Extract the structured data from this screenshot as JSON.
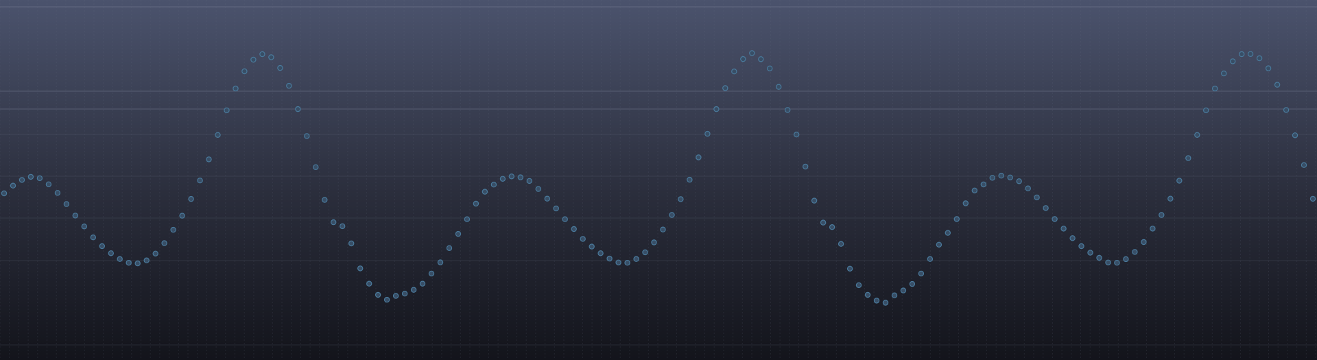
{
  "chart_data": {
    "type": "scatter",
    "title": "",
    "xlabel": "",
    "ylabel": "",
    "grid": true,
    "legend": "none",
    "xlim": [
      0,
      140
    ],
    "ylim": [
      -6,
      11
    ],
    "series": [
      {
        "values": [
          0.71,
          1.22,
          1.6,
          1.8,
          1.71,
          1.31,
          0.74,
          0.0,
          -0.76,
          -1.48,
          -2.2,
          -2.78,
          -3.25,
          -3.63,
          -3.88,
          -3.92,
          -3.72,
          -3.27,
          -2.58,
          -1.7,
          -0.77,
          0.34,
          1.56,
          2.96,
          4.57,
          6.2,
          7.64,
          8.78,
          9.55,
          9.91,
          9.71,
          9.0,
          7.82,
          6.28,
          4.5,
          2.44,
          0.28,
          -1.2,
          -1.46,
          -2.6,
          -4.25,
          -5.26,
          -6.0,
          -6.32,
          -6.07,
          -5.92,
          -5.67,
          -5.26,
          -4.59,
          -3.85,
          -2.91,
          -1.97,
          -1.0,
          0.03,
          0.82,
          1.29,
          1.67,
          1.83,
          1.77,
          1.53,
          1.0,
          0.36,
          -0.29,
          -1.0,
          -1.65,
          -2.3,
          -2.81,
          -3.25,
          -3.6,
          -3.86,
          -3.88,
          -3.63,
          -3.19,
          -2.53,
          -1.68,
          -0.72,
          0.33,
          1.61,
          3.09,
          4.65,
          6.28,
          7.67,
          8.77,
          9.59,
          9.98,
          9.58,
          8.97,
          7.75,
          6.22,
          4.6,
          2.48,
          0.23,
          -1.22,
          -1.52,
          -2.63,
          -4.27,
          -5.36,
          -6.0,
          -6.38,
          -6.52,
          -6.03,
          -5.71,
          -5.28,
          -4.59,
          -3.63,
          -2.68,
          -1.9,
          -0.99,
          0.05,
          0.9,
          1.3,
          1.74,
          1.88,
          1.76,
          1.51,
          1.04,
          0.44,
          -0.26,
          -0.99,
          -1.62,
          -2.25,
          -2.78,
          -3.21,
          -3.55,
          -3.86,
          -3.88,
          -3.64,
          -3.16,
          -2.51,
          -1.62,
          -0.72,
          0.36,
          1.55,
          3.04,
          4.57,
          6.2,
          7.64,
          8.64,
          9.44,
          9.91,
          9.92,
          9.64,
          8.98,
          7.89,
          6.22,
          4.55,
          2.58,
          0.35
        ],
        "color": "#3f6684"
      }
    ]
  },
  "colors": {
    "background_top": "#4b536d",
    "background_bottom": "#13141b",
    "grid_fine": "#6a7186",
    "grid_major": "#8d96ac",
    "marker_fill": "#384e66",
    "marker_stroke": "#4a7a9c"
  }
}
